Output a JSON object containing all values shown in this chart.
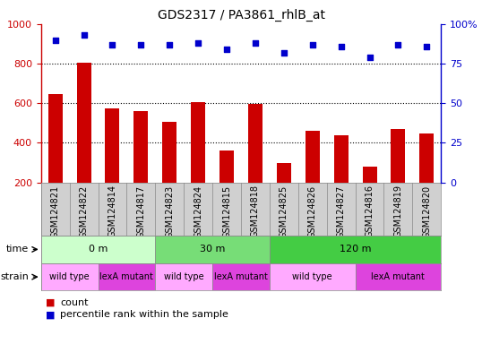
{
  "title": "GDS2317 / PA3861_rhlB_at",
  "samples": [
    "GSM124821",
    "GSM124822",
    "GSM124814",
    "GSM124817",
    "GSM124823",
    "GSM124824",
    "GSM124815",
    "GSM124818",
    "GSM124825",
    "GSM124826",
    "GSM124827",
    "GSM124816",
    "GSM124819",
    "GSM124820"
  ],
  "counts": [
    645,
    805,
    572,
    558,
    507,
    607,
    362,
    597,
    297,
    460,
    438,
    278,
    470,
    448
  ],
  "percentiles": [
    90,
    93,
    87,
    87,
    87,
    88,
    84,
    88,
    82,
    87,
    86,
    79,
    87,
    86
  ],
  "ylim_left": [
    200,
    1000
  ],
  "ylim_right": [
    0,
    100
  ],
  "yticks_left": [
    200,
    400,
    600,
    800,
    1000
  ],
  "yticks_right": [
    0,
    25,
    50,
    75,
    100
  ],
  "bar_color": "#cc0000",
  "dot_color": "#0000cc",
  "bar_bottom": 200,
  "time_groups": [
    {
      "label": "0 m",
      "start": 0,
      "end": 4,
      "color": "#ccffcc"
    },
    {
      "label": "30 m",
      "start": 4,
      "end": 8,
      "color": "#77dd77"
    },
    {
      "label": "120 m",
      "start": 8,
      "end": 14,
      "color": "#44cc44"
    }
  ],
  "strain_groups": [
    {
      "label": "wild type",
      "start": 0,
      "end": 2,
      "color": "#ffaaff"
    },
    {
      "label": "lexA mutant",
      "start": 2,
      "end": 4,
      "color": "#dd44dd"
    },
    {
      "label": "wild type",
      "start": 4,
      "end": 6,
      "color": "#ffaaff"
    },
    {
      "label": "lexA mutant",
      "start": 6,
      "end": 8,
      "color": "#dd44dd"
    },
    {
      "label": "wild type",
      "start": 8,
      "end": 11,
      "color": "#ffaaff"
    },
    {
      "label": "lexA mutant",
      "start": 11,
      "end": 14,
      "color": "#dd44dd"
    }
  ],
  "time_label": "time",
  "strain_label": "strain",
  "legend_count": "count",
  "legend_percentile": "percentile rank within the sample",
  "axis_bg": "#ffffff",
  "sample_bg": "#d0d0d0"
}
